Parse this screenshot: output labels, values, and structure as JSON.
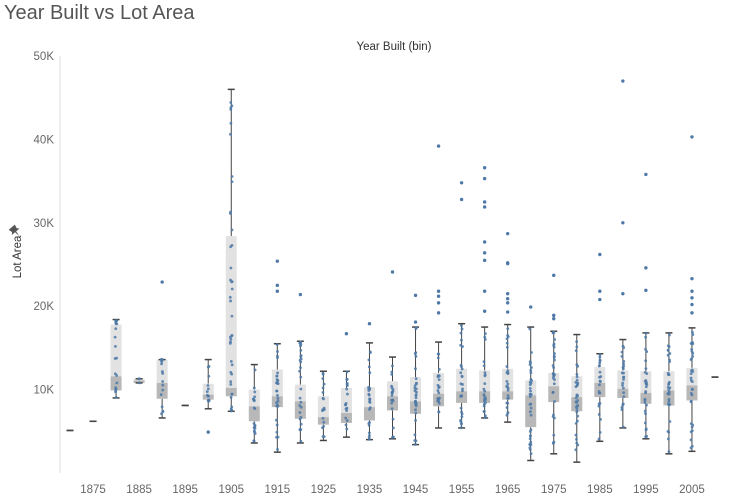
{
  "title": "Year Built vs Lot Area",
  "chart_data": {
    "type": "boxplot",
    "title": "Year Built vs Lot Area",
    "xlabel": "Year Built (bin)",
    "ylabel": "Lot Area",
    "ylim": [
      0,
      50000
    ],
    "y_ticks": [
      10000,
      20000,
      30000,
      40000,
      50000
    ],
    "y_tick_labels": [
      "10K",
      "20K",
      "30K",
      "40K",
      "50K"
    ],
    "x_tick_labels": [
      "1875",
      "1885",
      "1895",
      "1905",
      "1915",
      "1925",
      "1935",
      "1945",
      "1955",
      "1965",
      "1975",
      "1985",
      "1995",
      "2005"
    ],
    "colors": {
      "box_upper": "#e2e2e2",
      "box_lower": "#b8b8b8",
      "whisker": "#444444",
      "point": "#4e79a7"
    },
    "bins": [
      {
        "bin": 1870,
        "min": 5100,
        "q1": 5100,
        "median": 5100,
        "q3": 5100,
        "max": 5100,
        "outliers": []
      },
      {
        "bin": 1875,
        "min": 6200,
        "q1": 6200,
        "median": 6200,
        "q3": 6200,
        "max": 6200,
        "outliers": []
      },
      {
        "bin": 1880,
        "min": 9000,
        "q1": 9900,
        "median": 11600,
        "q3": 17800,
        "max": 18400,
        "outliers": []
      },
      {
        "bin": 1885,
        "min": 10800,
        "q1": 10800,
        "median": 11100,
        "q3": 11300,
        "max": 11300,
        "outliers": []
      },
      {
        "bin": 1890,
        "min": 6600,
        "q1": 8900,
        "median": 10800,
        "q3": 13600,
        "max": 13600,
        "outliers": [
          22900
        ]
      },
      {
        "bin": 1895,
        "min": 8100,
        "q1": 8100,
        "median": 8100,
        "q3": 8100,
        "max": 8100,
        "outliers": []
      },
      {
        "bin": 1900,
        "min": 7700,
        "q1": 8800,
        "median": 9400,
        "q3": 10700,
        "max": 13600,
        "outliers": [
          4900
        ]
      },
      {
        "bin": 1905,
        "min": 7400,
        "q1": 9200,
        "median": 10200,
        "q3": 28400,
        "max": 46000,
        "outliers": []
      },
      {
        "bin": 1910,
        "min": 3600,
        "q1": 6200,
        "median": 8000,
        "q3": 10000,
        "max": 13000,
        "outliers": []
      },
      {
        "bin": 1915,
        "min": 2500,
        "q1": 7900,
        "median": 9200,
        "q3": 12400,
        "max": 15500,
        "outliers": [
          21800,
          22500,
          25400
        ]
      },
      {
        "bin": 1920,
        "min": 3600,
        "q1": 6500,
        "median": 8600,
        "q3": 10600,
        "max": 15800,
        "outliers": [
          21400
        ]
      },
      {
        "bin": 1925,
        "min": 3900,
        "q1": 5800,
        "median": 6700,
        "q3": 9200,
        "max": 12200,
        "outliers": []
      },
      {
        "bin": 1930,
        "min": 4300,
        "q1": 6000,
        "median": 7200,
        "q3": 10200,
        "max": 12200,
        "outliers": [
          16700
        ]
      },
      {
        "bin": 1935,
        "min": 4000,
        "q1": 6300,
        "median": 7900,
        "q3": 10300,
        "max": 15600,
        "outliers": [
          17900
        ]
      },
      {
        "bin": 1940,
        "min": 4100,
        "q1": 7500,
        "median": 9200,
        "q3": 11000,
        "max": 13900,
        "outliers": [
          24100
        ]
      },
      {
        "bin": 1945,
        "min": 3400,
        "q1": 7100,
        "median": 8600,
        "q3": 11500,
        "max": 17500,
        "outliers": [
          18100,
          21300
        ]
      },
      {
        "bin": 1950,
        "min": 5400,
        "q1": 8000,
        "median": 9500,
        "q3": 12000,
        "max": 15700,
        "outliers": [
          19200,
          20400,
          21200,
          21800,
          39200
        ]
      },
      {
        "bin": 1955,
        "min": 5400,
        "q1": 8400,
        "median": 9800,
        "q3": 12500,
        "max": 17900,
        "outliers": [
          32800,
          34800
        ]
      },
      {
        "bin": 1960,
        "min": 6600,
        "q1": 8400,
        "median": 9800,
        "q3": 12300,
        "max": 17500,
        "outliers": [
          19400,
          21800,
          25500,
          26400,
          27700,
          31900,
          32500,
          35300,
          36600
        ]
      },
      {
        "bin": 1965,
        "min": 6100,
        "q1": 8800,
        "median": 9800,
        "q3": 12500,
        "max": 17800,
        "outliers": [
          19300,
          20400,
          20900,
          21500,
          25100,
          25200,
          28700
        ]
      },
      {
        "bin": 1970,
        "min": 1500,
        "q1": 5500,
        "median": 9300,
        "q3": 11100,
        "max": 17500,
        "outliers": [
          19900
        ]
      },
      {
        "bin": 1975,
        "min": 2300,
        "q1": 8500,
        "median": 10400,
        "q3": 12000,
        "max": 17000,
        "outliers": [
          18500,
          18900,
          23700
        ]
      },
      {
        "bin": 1980,
        "min": 1300,
        "q1": 7400,
        "median": 9100,
        "q3": 11600,
        "max": 16600,
        "outliers": []
      },
      {
        "bin": 1985,
        "min": 3800,
        "q1": 9100,
        "median": 10800,
        "q3": 12700,
        "max": 14300,
        "outliers": [
          20800,
          21800,
          26200
        ]
      },
      {
        "bin": 1990,
        "min": 5400,
        "q1": 9000,
        "median": 10100,
        "q3": 12300,
        "max": 16000,
        "outliers": [
          21500,
          30000,
          47000
        ]
      },
      {
        "bin": 1995,
        "min": 4100,
        "q1": 8300,
        "median": 9600,
        "q3": 12200,
        "max": 16800,
        "outliers": [
          21900,
          24600,
          35800
        ]
      },
      {
        "bin": 2000,
        "min": 2300,
        "q1": 8100,
        "median": 9900,
        "q3": 12200,
        "max": 16800,
        "outliers": []
      },
      {
        "bin": 2005,
        "min": 2600,
        "q1": 8700,
        "median": 10500,
        "q3": 12600,
        "max": 17400,
        "outliers": [
          19200,
          20200,
          21000,
          21800,
          23300,
          40300
        ]
      },
      {
        "bin": 2010,
        "min": 11500,
        "q1": 11500,
        "median": 11500,
        "q3": 11500,
        "max": 11500,
        "outliers": []
      }
    ]
  }
}
